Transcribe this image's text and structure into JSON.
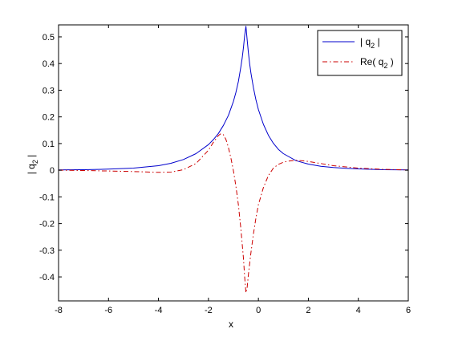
{
  "chart_data": {
    "type": "line",
    "title": "",
    "xlabel": "x",
    "ylabel": "| q",
    "ylabel_sub": "2",
    "ylabel_suffix": " |",
    "xlim": [
      -8,
      6
    ],
    "ylim": [
      -0.49,
      0.545
    ],
    "xticks": [
      -8,
      -6,
      -4,
      -2,
      0,
      2,
      4,
      6
    ],
    "yticks": [
      -0.4,
      -0.3,
      -0.2,
      -0.1,
      0,
      0.1,
      0.2,
      0.3,
      0.4,
      0.5
    ],
    "grid": false,
    "legend_position": "top-right",
    "series": [
      {
        "legend": {
          "prefix": "| q",
          "sub": "2",
          "suffix": " |"
        },
        "color": "#0000cc",
        "style": "solid",
        "x": [
          -8,
          -7,
          -6,
          -5,
          -4,
          -3.5,
          -3,
          -2.5,
          -2,
          -1.8,
          -1.6,
          -1.4,
          -1.2,
          -1.0,
          -0.9,
          -0.8,
          -0.7,
          -0.65,
          -0.6,
          -0.55,
          -0.5,
          -0.45,
          -0.4,
          -0.35,
          -0.3,
          -0.2,
          -0.1,
          0.0,
          0.2,
          0.4,
          0.6,
          0.8,
          1.0,
          1.5,
          2.0,
          2.5,
          3.0,
          3.5,
          4.0,
          5.0,
          6.0
        ],
        "y": [
          0.001,
          0.002,
          0.004,
          0.008,
          0.017,
          0.026,
          0.04,
          0.062,
          0.096,
          0.115,
          0.138,
          0.168,
          0.206,
          0.258,
          0.292,
          0.333,
          0.388,
          0.42,
          0.46,
          0.505,
          0.54,
          0.49,
          0.44,
          0.4,
          0.365,
          0.31,
          0.265,
          0.228,
          0.172,
          0.131,
          0.101,
          0.078,
          0.062,
          0.036,
          0.023,
          0.015,
          0.01,
          0.007,
          0.005,
          0.002,
          0.001
        ]
      },
      {
        "legend": {
          "prefix": "Re( q",
          "sub": "2",
          "suffix": " )"
        },
        "color": "#cc0000",
        "style": "dashdot",
        "x": [
          -8,
          -7,
          -6,
          -5,
          -4,
          -3.5,
          -3,
          -2.5,
          -2,
          -1.8,
          -1.6,
          -1.5,
          -1.4,
          -1.3,
          -1.2,
          -1.1,
          -1.0,
          -0.9,
          -0.8,
          -0.7,
          -0.6,
          -0.55,
          -0.5,
          -0.45,
          -0.4,
          -0.3,
          -0.2,
          -0.1,
          0.0,
          0.2,
          0.4,
          0.6,
          0.8,
          1.0,
          1.2,
          1.5,
          1.8,
          2.0,
          2.5,
          3.0,
          4.0,
          5.0,
          6.0
        ],
        "y": [
          0.0,
          -0.001,
          -0.003,
          -0.005,
          -0.008,
          -0.007,
          0.002,
          0.025,
          0.075,
          0.105,
          0.13,
          0.137,
          0.133,
          0.115,
          0.085,
          0.045,
          -0.002,
          -0.06,
          -0.13,
          -0.22,
          -0.33,
          -0.4,
          -0.46,
          -0.44,
          -0.39,
          -0.31,
          -0.24,
          -0.18,
          -0.13,
          -0.065,
          -0.02,
          0.008,
          0.022,
          0.03,
          0.034,
          0.037,
          0.035,
          0.033,
          0.025,
          0.017,
          0.008,
          0.003,
          0.001
        ]
      }
    ]
  }
}
